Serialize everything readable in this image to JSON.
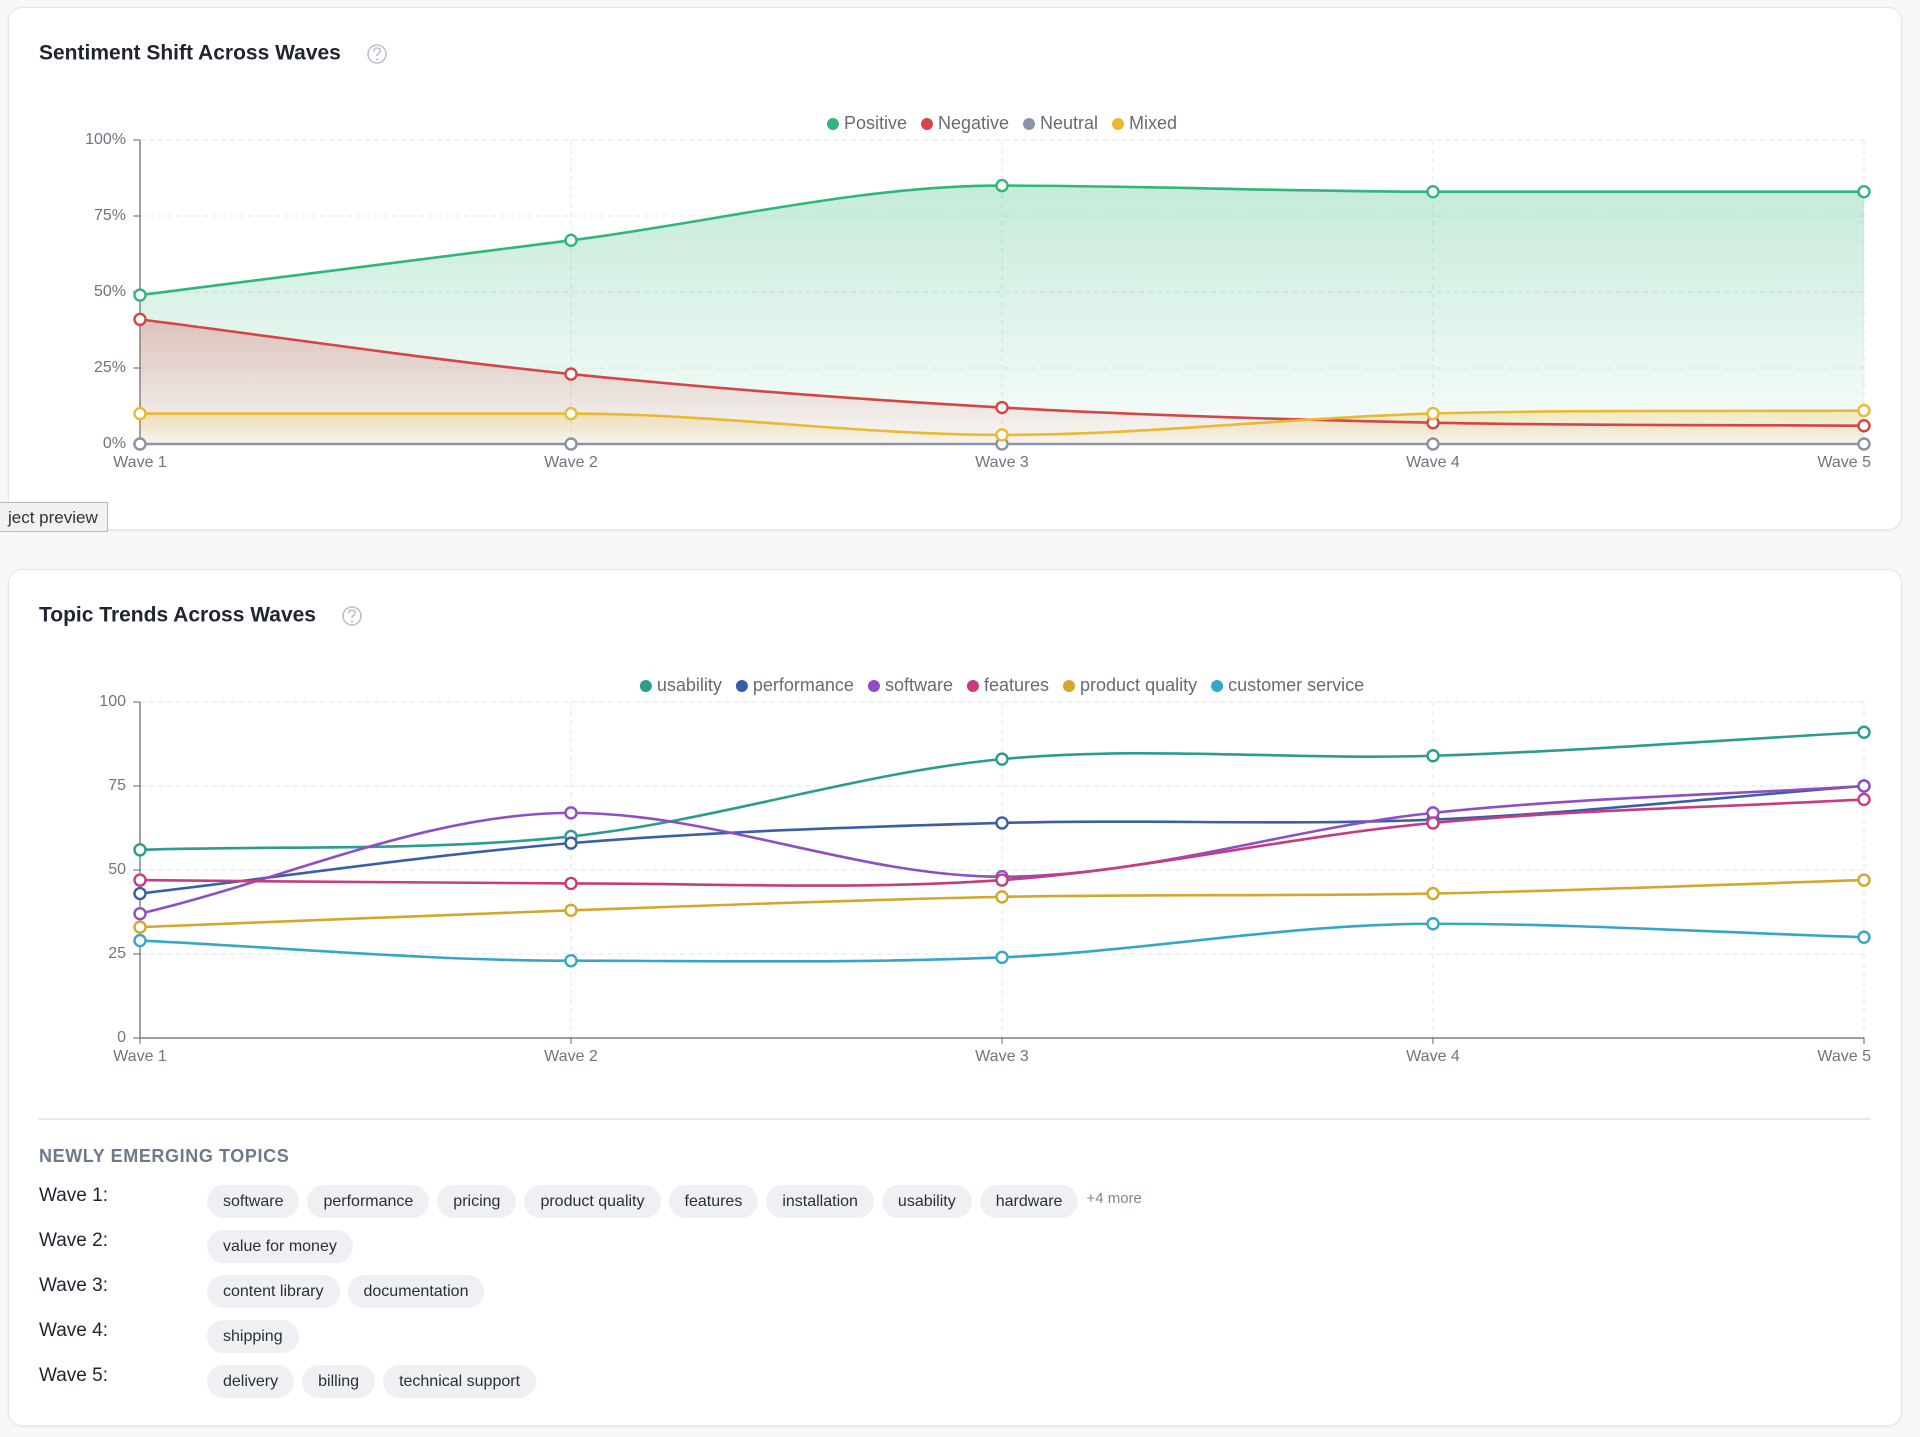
{
  "chart_data": [
    {
      "type": "line",
      "title": "Sentiment Shift Across Waves",
      "area": true,
      "grid": true,
      "legend": "top",
      "categories": [
        "Wave 1",
        "Wave 2",
        "Wave 3",
        "Wave 4",
        "Wave 5"
      ],
      "ylim": [
        0,
        100
      ],
      "yticks": [
        {
          "value": 0,
          "label": "0%"
        },
        {
          "value": 25,
          "label": "25%"
        },
        {
          "value": 50,
          "label": "50%"
        },
        {
          "value": 75,
          "label": "75%"
        },
        {
          "value": 100,
          "label": "100%"
        }
      ],
      "series": [
        {
          "name": "Positive",
          "color": "#2fb67a",
          "values": [
            49,
            67,
            85,
            83,
            83
          ]
        },
        {
          "name": "Negative",
          "color": "#d64545",
          "values": [
            41,
            23,
            12,
            7,
            6
          ]
        },
        {
          "name": "Neutral",
          "color": "#8a94a6",
          "values": [
            0,
            0,
            0,
            0,
            0
          ]
        },
        {
          "name": "Mixed",
          "color": "#e8b931",
          "values": [
            10,
            10,
            3,
            10,
            11
          ]
        }
      ]
    },
    {
      "type": "line",
      "title": "Topic Trends Across Waves",
      "area": false,
      "grid": true,
      "legend": "top",
      "categories": [
        "Wave 1",
        "Wave 2",
        "Wave 3",
        "Wave 4",
        "Wave 5"
      ],
      "ylim": [
        0,
        100
      ],
      "yticks": [
        0,
        25,
        50,
        75,
        100
      ],
      "series": [
        {
          "name": "usability",
          "color": "#2a9d8f",
          "values": [
            56,
            60,
            83,
            84,
            91
          ]
        },
        {
          "name": "performance",
          "color": "#3b5ea8",
          "values": [
            43,
            58,
            64,
            65,
            75
          ]
        },
        {
          "name": "software",
          "color": "#8e4ec6",
          "values": [
            37,
            67,
            48,
            67,
            75
          ]
        },
        {
          "name": "features",
          "color": "#c83b7f",
          "values": [
            47,
            46,
            47,
            64,
            71
          ]
        },
        {
          "name": "product quality",
          "color": "#d4a72c",
          "values": [
            33,
            38,
            42,
            43,
            47
          ]
        },
        {
          "name": "customer service",
          "color": "#34a7c9",
          "values": [
            29,
            23,
            24,
            34,
            30
          ]
        }
      ]
    }
  ],
  "tooltip": "ject preview",
  "emerging_topics": {
    "title": "NEWLY EMERGING TOPICS",
    "rows": [
      {
        "label": "Wave 1:",
        "topics": [
          "software",
          "performance",
          "pricing",
          "product quality",
          "features",
          "installation",
          "usability",
          "hardware"
        ],
        "more": "+4 more"
      },
      {
        "label": "Wave 2:",
        "topics": [
          "value for money"
        ]
      },
      {
        "label": "Wave 3:",
        "topics": [
          "content library",
          "documentation"
        ]
      },
      {
        "label": "Wave 4:",
        "topics": [
          "shipping"
        ]
      },
      {
        "label": "Wave 5:",
        "topics": [
          "delivery",
          "billing",
          "technical support"
        ]
      }
    ]
  }
}
